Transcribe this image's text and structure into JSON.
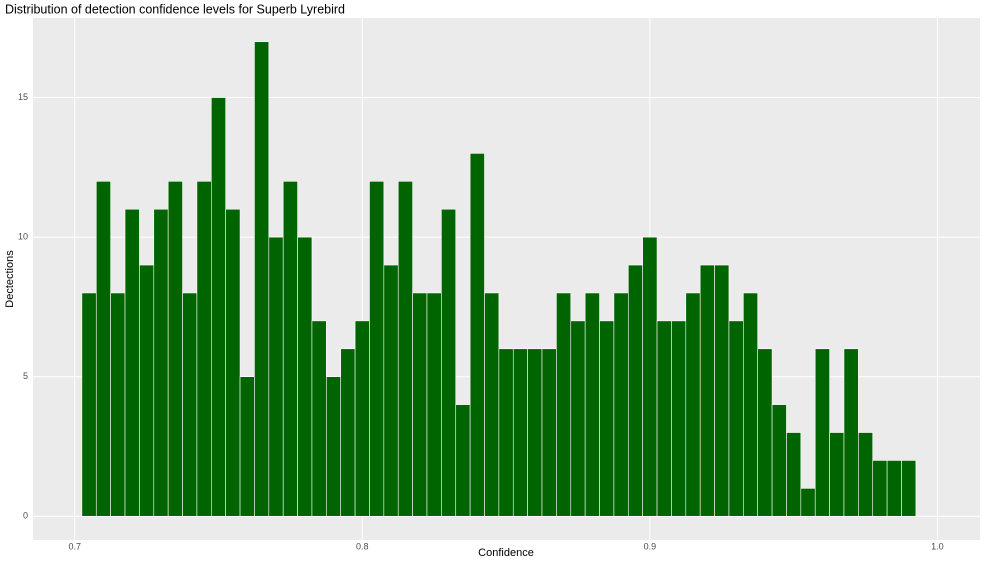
{
  "chart_data": {
    "type": "histogram",
    "title": "Distribution of detection confidence levels for Superb Lyrebird",
    "x_label": "Confidence",
    "y_label": "Dectections",
    "bins": [
      0.7025,
      0.7075,
      0.7125,
      0.7175,
      0.7225,
      0.7275,
      0.7325,
      0.7375,
      0.7425,
      0.7475,
      0.7525,
      0.7575,
      0.7625,
      0.7675,
      0.7725,
      0.7775,
      0.7825,
      0.7875,
      0.7925,
      0.7975,
      0.8025,
      0.8075,
      0.8125,
      0.8175,
      0.8225,
      0.8275,
      0.8325,
      0.8375,
      0.8425,
      0.8475,
      0.8525,
      0.8575,
      0.8625,
      0.8675,
      0.8725,
      0.8775,
      0.8825,
      0.8875,
      0.8925,
      0.8975,
      0.9025,
      0.9075,
      0.9125,
      0.9175,
      0.9225,
      0.9275,
      0.9325,
      0.9375,
      0.9425,
      0.9475,
      0.9525,
      0.9575,
      0.9625,
      0.9675,
      0.9725,
      0.9775,
      0.9825,
      0.9875,
      0.9925
    ],
    "values": [
      8,
      12,
      8,
      11,
      9,
      11,
      12,
      8,
      12,
      15,
      11,
      5,
      17,
      10,
      12,
      10,
      7,
      5,
      6,
      7,
      12,
      9,
      12,
      8,
      8,
      11,
      4,
      13,
      8,
      6,
      6,
      6,
      6,
      8,
      7,
      8,
      7,
      8,
      9,
      10,
      7,
      7,
      8,
      9,
      9,
      7,
      8,
      6,
      4,
      3,
      1,
      6,
      3,
      6,
      3,
      2,
      2,
      2
    ],
    "color": "#006400",
    "xlim": [
      0.6855,
      1.0148
    ],
    "xticks": [
      0.7,
      0.8,
      0.9,
      {
        "value": 1.0,
        "label": "1.0"
      }
    ],
    "ylim": [
      -0.85,
      17.85
    ],
    "yticks": [
      0,
      5,
      10,
      15
    ],
    "grid": true
  }
}
